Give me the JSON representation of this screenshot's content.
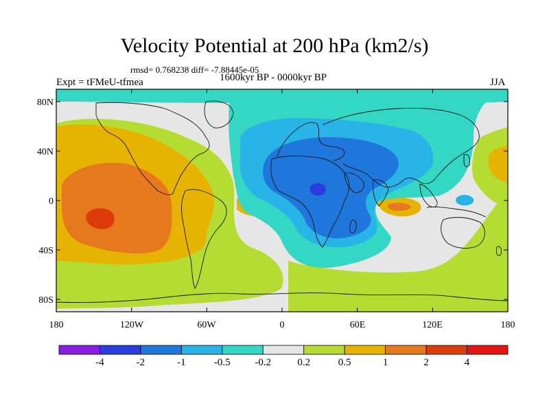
{
  "title": "Velocity Potential at 200 hPa (km2/s)",
  "stats": "rmsd= 0.768238 diff= -7.88445e-05",
  "expt": "Expt = tFMeU-tfmea",
  "period": "1600kyr BP - 0000kyr BP",
  "season": "JJA",
  "lat_labels": [
    "80N",
    "40N",
    "0",
    "40S",
    "80S"
  ],
  "lon_labels": [
    "180",
    "120W",
    "60W",
    "0",
    "60E",
    "120E",
    "180"
  ],
  "colorbar": {
    "colors": [
      "#8a1ee6",
      "#2a3ee0",
      "#1f77dc",
      "#28b4e6",
      "#34d6c4",
      "#e6e6e6",
      "#b4dc32",
      "#e6b400",
      "#e6781e",
      "#dc3c0a",
      "#e61414"
    ],
    "labels": [
      "-4",
      "-2",
      "-1",
      "-0.5",
      "-0.2",
      "0.2",
      "0.5",
      "1",
      "2",
      "4"
    ]
  },
  "field_colors": {
    "neutral": "#e6e6e6",
    "pos_weak": "#b4dc32",
    "pos_mid": "#e6b400",
    "pos_strong": "#e6781e",
    "pos_max": "#dc3c0a",
    "neg_weak": "#34d6c4",
    "neg_mid": "#28b4e6",
    "neg_strong": "#1f77dc",
    "neg_max": "#2a3ee0"
  }
}
